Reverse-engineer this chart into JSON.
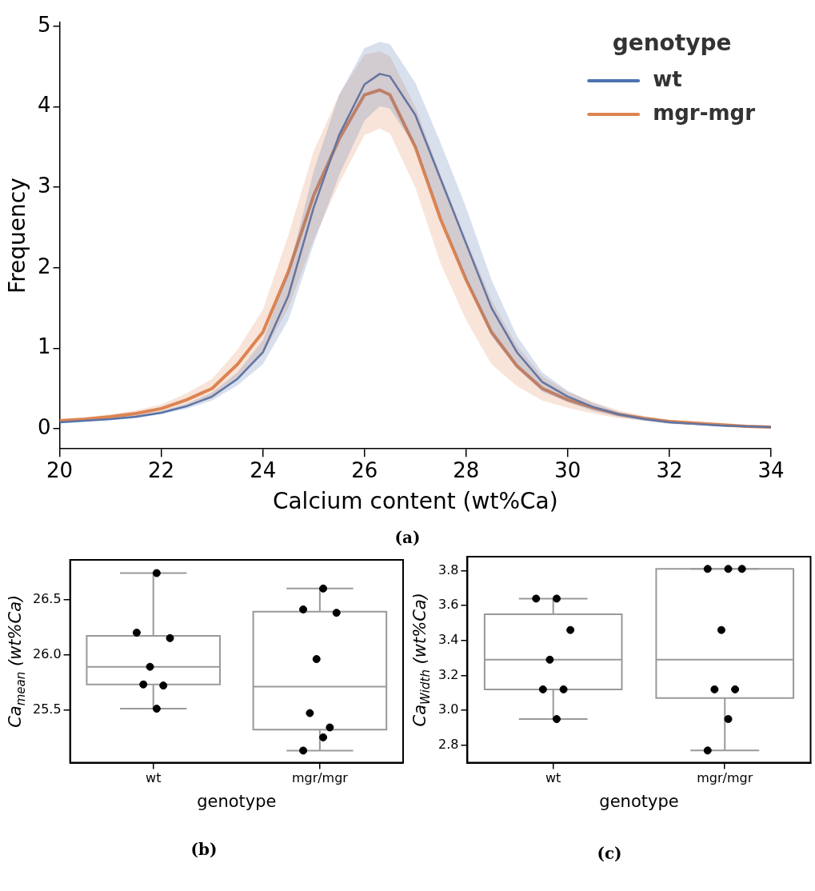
{
  "chart_data": [
    {
      "type": "line",
      "xlabel": "Calcium content (wt%Ca)",
      "ylabel": "Frequency",
      "legend": "top right",
      "legend_title": "genotype",
      "grid": false,
      "x": [
        20,
        20.5,
        21,
        21.5,
        22,
        22.5,
        23,
        23.5,
        24,
        24.5,
        25,
        25.5,
        26,
        26.3,
        26.5,
        27,
        27.5,
        28,
        28.5,
        29,
        29.5,
        30,
        30.5,
        31,
        31.5,
        32,
        32.5,
        33,
        33.5,
        34
      ],
      "series": [
        {
          "name": "wt",
          "color": "#4c72b0",
          "values": [
            0.08,
            0.1,
            0.12,
            0.15,
            0.2,
            0.28,
            0.4,
            0.62,
            0.95,
            1.65,
            2.75,
            3.65,
            4.28,
            4.41,
            4.38,
            3.9,
            3.1,
            2.3,
            1.5,
            0.95,
            0.58,
            0.4,
            0.27,
            0.18,
            0.12,
            0.08,
            0.06,
            0.04,
            0.03,
            0.02
          ],
          "lower": [
            0.07,
            0.09,
            0.11,
            0.13,
            0.18,
            0.25,
            0.35,
            0.54,
            0.8,
            1.35,
            2.3,
            3.15,
            3.83,
            4.01,
            3.98,
            3.5,
            2.65,
            1.85,
            1.15,
            0.75,
            0.46,
            0.33,
            0.22,
            0.15,
            0.1,
            0.06,
            0.05,
            0.03,
            0.02,
            0.01
          ],
          "upper": [
            0.09,
            0.11,
            0.13,
            0.17,
            0.22,
            0.31,
            0.45,
            0.7,
            1.1,
            1.95,
            3.2,
            4.15,
            4.73,
            4.81,
            4.78,
            4.3,
            3.55,
            2.75,
            1.85,
            1.15,
            0.7,
            0.47,
            0.32,
            0.21,
            0.14,
            0.1,
            0.07,
            0.05,
            0.04,
            0.03
          ]
        },
        {
          "name": "mgr-mgr",
          "color": "#dd8452",
          "values": [
            0.1,
            0.12,
            0.15,
            0.19,
            0.25,
            0.36,
            0.5,
            0.8,
            1.2,
            1.95,
            2.9,
            3.6,
            4.15,
            4.21,
            4.15,
            3.5,
            2.6,
            1.85,
            1.2,
            0.78,
            0.5,
            0.36,
            0.26,
            0.18,
            0.13,
            0.09,
            0.07,
            0.05,
            0.03,
            0.02
          ],
          "lower": [
            0.08,
            0.1,
            0.12,
            0.15,
            0.2,
            0.28,
            0.38,
            0.62,
            0.92,
            1.5,
            2.35,
            3.05,
            3.65,
            3.73,
            3.67,
            3.0,
            2.05,
            1.35,
            0.8,
            0.53,
            0.35,
            0.26,
            0.19,
            0.13,
            0.1,
            0.07,
            0.05,
            0.04,
            0.02,
            0.01
          ],
          "upper": [
            0.12,
            0.14,
            0.18,
            0.23,
            0.3,
            0.44,
            0.62,
            0.98,
            1.48,
            2.4,
            3.45,
            4.15,
            4.65,
            4.69,
            4.63,
            4.0,
            3.15,
            2.35,
            1.6,
            1.03,
            0.65,
            0.46,
            0.33,
            0.23,
            0.16,
            0.11,
            0.09,
            0.06,
            0.04,
            0.03
          ]
        }
      ],
      "xlim": [
        20,
        34
      ],
      "ylim": [
        -0.25,
        5.05
      ],
      "xticks": [
        20,
        22,
        24,
        26,
        28,
        30,
        32,
        34
      ],
      "yticks": [
        0,
        1,
        2,
        3,
        4,
        5
      ],
      "annotations": [
        "(a)"
      ]
    },
    {
      "type": "box",
      "xlabel": "genotype",
      "ylabel": "Ca$_{mean}$ (wt%Ca)",
      "grid": false,
      "marker": "circle",
      "categories": [
        "wt",
        "mgr/mgr"
      ],
      "series": [
        {
          "type": "box",
          "color": "#999999",
          "boxes": [
            {
              "low": 25.51,
              "q1": 25.73,
              "median": 25.89,
              "q3": 26.17,
              "high": 26.74
            },
            {
              "low": 25.13,
              "q1": 25.32,
              "median": 25.71,
              "q3": 26.39,
              "high": 26.6
            }
          ]
        },
        {
          "type": "scatter",
          "color": "#000000",
          "x": [
            "wt",
            "wt",
            "wt",
            "wt",
            "wt",
            "wt",
            "wt",
            "mgr/mgr",
            "mgr/mgr",
            "mgr/mgr",
            "mgr/mgr",
            "mgr/mgr",
            "mgr/mgr",
            "mgr/mgr",
            "mgr/mgr"
          ],
          "values": [
            26.74,
            26.2,
            26.15,
            25.89,
            25.73,
            25.72,
            25.51,
            26.6,
            26.41,
            26.38,
            25.96,
            25.47,
            25.34,
            25.25,
            25.13
          ]
        }
      ],
      "ylim": [
        25.02,
        26.86
      ],
      "yticks": [
        25.5,
        {
          "value": 26,
          "label": "26.0"
        },
        26.5
      ],
      "annotations": [
        "(b)"
      ]
    },
    {
      "type": "box",
      "xlabel": "genotype",
      "ylabel": "Ca$_{Width}$ (wt%Ca)",
      "grid": false,
      "marker": "circle",
      "categories": [
        "wt",
        "mgr/mgr"
      ],
      "series": [
        {
          "type": "box",
          "color": "#999999",
          "boxes": [
            {
              "low": 2.95,
              "q1": 3.12,
              "median": 3.29,
              "q3": 3.55,
              "high": 3.64
            },
            {
              "low": 2.77,
              "q1": 3.07,
              "median": 3.29,
              "q3": 3.81,
              "high": 3.81
            }
          ]
        },
        {
          "type": "scatter",
          "color": "#000000",
          "x": [
            "wt",
            "wt",
            "wt",
            "wt",
            "wt",
            "wt",
            "wt",
            "mgr/mgr",
            "mgr/mgr",
            "mgr/mgr",
            "mgr/mgr",
            "mgr/mgr",
            "mgr/mgr",
            "mgr/mgr",
            "mgr/mgr"
          ],
          "values": [
            3.64,
            3.64,
            3.46,
            3.29,
            3.12,
            3.12,
            2.95,
            3.81,
            3.81,
            3.81,
            3.46,
            3.12,
            3.12,
            2.95,
            2.77
          ]
        }
      ],
      "ylim": [
        2.7,
        3.88
      ],
      "yticks": [
        2.8,
        {
          "value": 3,
          "label": "3.0"
        },
        3.2,
        3.4,
        3.6,
        3.8
      ],
      "annotations": [
        "(c)"
      ]
    }
  ]
}
